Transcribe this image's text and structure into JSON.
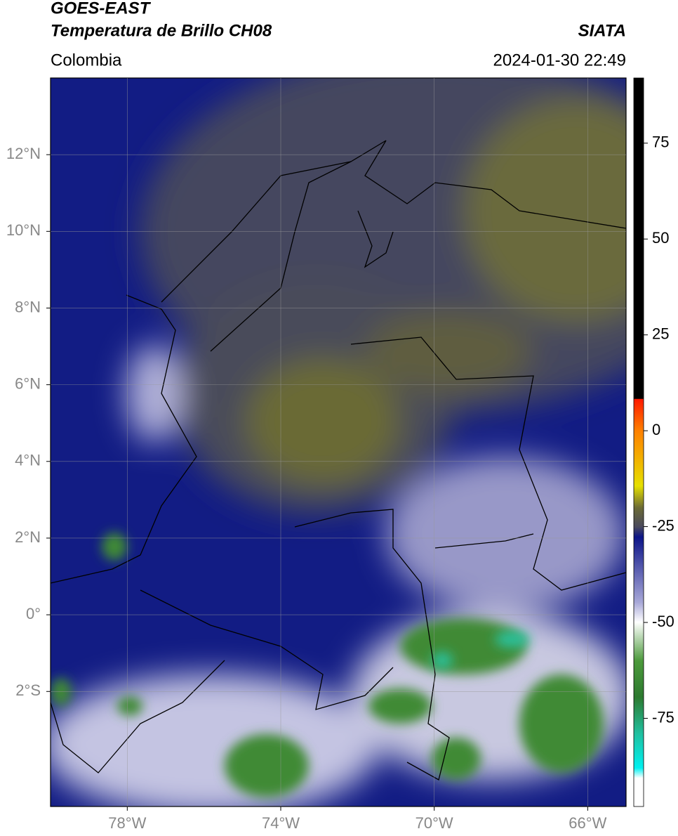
{
  "header": {
    "satellite": "GOES-EAST",
    "product": "Temperatura de Brillo CH08",
    "region": "Colombia",
    "source": "SIATA",
    "datetime": "2024-01-30 22:49"
  },
  "map": {
    "xlim": [
      -80,
      -65
    ],
    "ylim": [
      -5,
      14
    ],
    "grid": true,
    "xticks": [
      {
        "value": -78,
        "label": "78°W"
      },
      {
        "value": -74,
        "label": "74°W"
      },
      {
        "value": -70,
        "label": "70°W"
      },
      {
        "value": -66,
        "label": "66°W"
      }
    ],
    "yticks": [
      {
        "value": 12,
        "label": "12°N"
      },
      {
        "value": 10,
        "label": "10°N"
      },
      {
        "value": 8,
        "label": "8°N"
      },
      {
        "value": 6,
        "label": "6°N"
      },
      {
        "value": 4,
        "label": "4°N"
      },
      {
        "value": 2,
        "label": "2°N"
      },
      {
        "value": 0,
        "label": "0°"
      },
      {
        "value": -2,
        "label": "2°S"
      }
    ]
  },
  "colorbar": {
    "range": [
      -98,
      92
    ],
    "ticks": [
      75,
      50,
      25,
      0,
      -25,
      -50,
      -75
    ]
  }
}
